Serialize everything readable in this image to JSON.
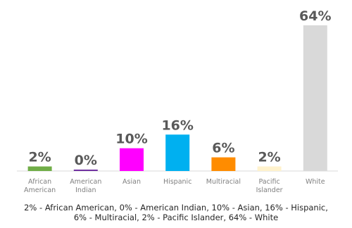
{
  "chart_data": {
    "type": "bar",
    "categories": [
      [
        "African",
        "American"
      ],
      [
        "American",
        "Indian"
      ],
      [
        "Asian"
      ],
      [
        "Hispanic"
      ],
      [
        "Multiracial"
      ],
      [
        "Pacific",
        "Islander"
      ],
      [
        "White"
      ]
    ],
    "values": [
      2,
      0,
      10,
      16,
      6,
      2,
      64
    ],
    "value_labels": [
      "2%",
      "0%",
      "10%",
      "16%",
      "6%",
      "2%",
      "64%"
    ],
    "colors": [
      "#70ad47",
      "#7030a0",
      "#ff00ff",
      "#00b0f0",
      "#ff8c00",
      "#fff2cc",
      "#d9d9d9"
    ],
    "ylim": [
      0,
      64
    ],
    "grid": false,
    "legend": "none"
  },
  "caption": {
    "line1": "2% - African American, 0% - American Indian, 10% - Asian, 16% - Hispanic,",
    "line2": "6% - Multiracial, 2% - Pacific Islander, 64% - White"
  }
}
